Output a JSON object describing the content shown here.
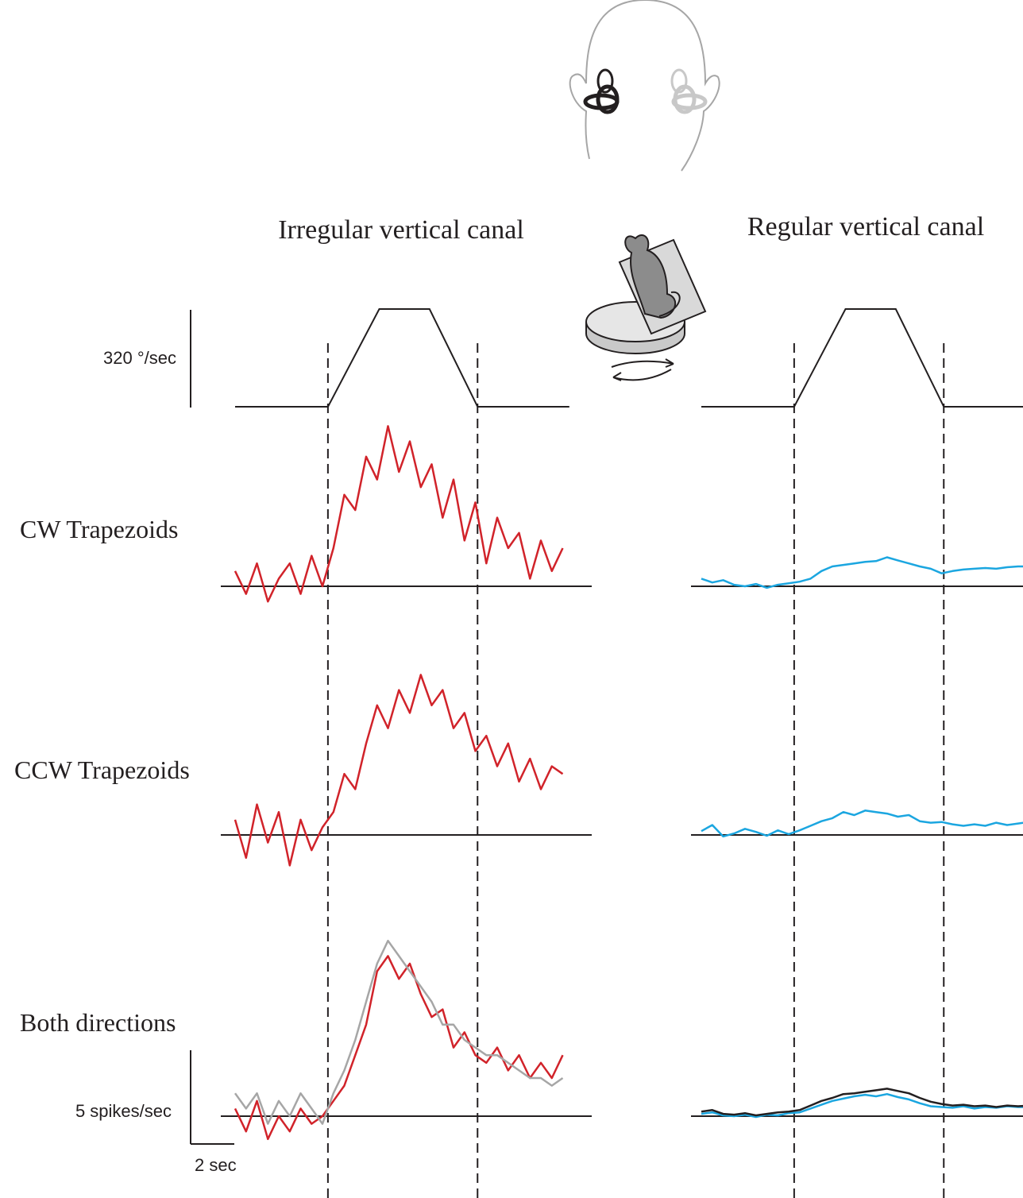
{
  "row_labels": [
    "CW Trapezoids",
    "CCW Trapezoids",
    "Both directions"
  ],
  "scale_bars": {
    "velocity": {
      "value": 320,
      "label": "320 °/sec"
    },
    "rate": {
      "value": 5,
      "label": "5 spikes/sec"
    },
    "time": {
      "value": 2,
      "label": "2 sec"
    }
  },
  "chart_data": [
    {
      "type": "line",
      "title": "Irregular vertical canal",
      "x": [
        0,
        0.5,
        1,
        1.5,
        2,
        2.5,
        3,
        3.5,
        4,
        4.5,
        5,
        5.5,
        6,
        6.5,
        7,
        7.5,
        8,
        8.5,
        9,
        9.5,
        10,
        10.5,
        11,
        11.5,
        12,
        12.5,
        13,
        13.5,
        14,
        14.5,
        15
      ],
      "stimulus": {
        "x": [
          0,
          4.25,
          6.6,
          8.9,
          11.1,
          15.3
        ],
        "values": [
          0,
          0,
          320,
          320,
          0,
          0
        ]
      },
      "rows": [
        {
          "series": [
            {
              "color": "#d1232a",
              "values": [
                2,
                -1,
                3,
                -2,
                1,
                3,
                -1,
                4,
                0,
                5,
                12,
                10,
                17,
                14,
                21,
                15,
                19,
                13,
                16,
                9,
                14,
                6,
                11,
                3,
                9,
                5,
                7,
                1,
                6,
                2,
                5
              ]
            }
          ]
        },
        {
          "series": [
            {
              "color": "#d1232a",
              "values": [
                2,
                -3,
                4,
                -1,
                3,
                -4,
                2,
                -2,
                1,
                3,
                8,
                6,
                12,
                17,
                14,
                19,
                16,
                21,
                17,
                19,
                14,
                16,
                11,
                13,
                9,
                12,
                7,
                10,
                6,
                9,
                8
              ]
            }
          ]
        },
        {
          "series": [
            {
              "color": "#d1232a",
              "values": [
                1,
                -2,
                2,
                -3,
                0,
                -2,
                1,
                -1,
                0,
                2,
                4,
                8,
                12,
                19,
                21,
                18,
                20,
                16,
                13,
                14,
                9,
                11,
                8,
                7,
                9,
                6,
                8,
                5,
                7,
                5,
                8
              ]
            },
            {
              "color": "#a6a6a6",
              "values": [
                3,
                1,
                3,
                -1,
                2,
                0,
                3,
                1,
                -1,
                3,
                6,
                10,
                15,
                20,
                23,
                21,
                19,
                17,
                15,
                12,
                12,
                10,
                9,
                8,
                8,
                7,
                6,
                5,
                5,
                4,
                5
              ]
            }
          ]
        }
      ]
    },
    {
      "type": "line",
      "title": "Regular vertical canal",
      "x": [
        0,
        0.5,
        1,
        1.5,
        2,
        2.5,
        3,
        3.5,
        4,
        4.5,
        5,
        5.5,
        6,
        6.5,
        7,
        7.5,
        8,
        8.5,
        9,
        9.5,
        10,
        10.5,
        11,
        11.5,
        12,
        12.5,
        13,
        13.5,
        14,
        14.5,
        15
      ],
      "stimulus": {
        "x": [
          0,
          4.25,
          6.6,
          8.9,
          11.1,
          15.3
        ],
        "values": [
          0,
          0,
          320,
          320,
          0,
          0
        ]
      },
      "rows": [
        {
          "series": [
            {
              "color": "#1ba6e0",
              "values": [
                1,
                0.5,
                0.8,
                0.2,
                0,
                0.3,
                -0.2,
                0.2,
                0.4,
                0.6,
                1,
                2,
                2.6,
                2.8,
                3,
                3.2,
                3.3,
                3.8,
                3.4,
                3,
                2.6,
                2.3,
                1.7,
                2,
                2.2,
                2.3,
                2.4,
                2.3,
                2.5,
                2.6,
                2.6
              ]
            }
          ]
        },
        {
          "series": [
            {
              "color": "#1ba6e0",
              "values": [
                0.5,
                1.3,
                -0.2,
                0.2,
                0.8,
                0.4,
                -0.1,
                0.6,
                0.1,
                0.6,
                1.2,
                1.8,
                2.2,
                3,
                2.6,
                3.2,
                3,
                2.8,
                2.4,
                2.6,
                1.8,
                1.6,
                1.7,
                1.4,
                1.2,
                1.4,
                1.2,
                1.6,
                1.3,
                1.5,
                1.7
              ]
            }
          ]
        },
        {
          "series": [
            {
              "color": "#1ba6e0",
              "values": [
                0.3,
                0.5,
                0.1,
                0,
                0.2,
                -0.1,
                0.2,
                0.1,
                0.4,
                0.5,
                1,
                1.5,
                2,
                2.3,
                2.6,
                2.8,
                2.6,
                2.9,
                2.5,
                2.2,
                1.7,
                1.3,
                1.2,
                1.1,
                1.3,
                1,
                1.2,
                1.1,
                1.3,
                1.2,
                1.2
              ]
            },
            {
              "color": "#231f20",
              "values": [
                0.6,
                0.8,
                0.3,
                0.2,
                0.4,
                0.1,
                0.3,
                0.5,
                0.6,
                0.8,
                1.4,
                2,
                2.4,
                2.9,
                3,
                3.2,
                3.4,
                3.6,
                3.3,
                3,
                2.4,
                1.9,
                1.6,
                1.4,
                1.5,
                1.3,
                1.4,
                1.2,
                1.4,
                1.3,
                1.4
              ]
            }
          ]
        }
      ]
    }
  ]
}
